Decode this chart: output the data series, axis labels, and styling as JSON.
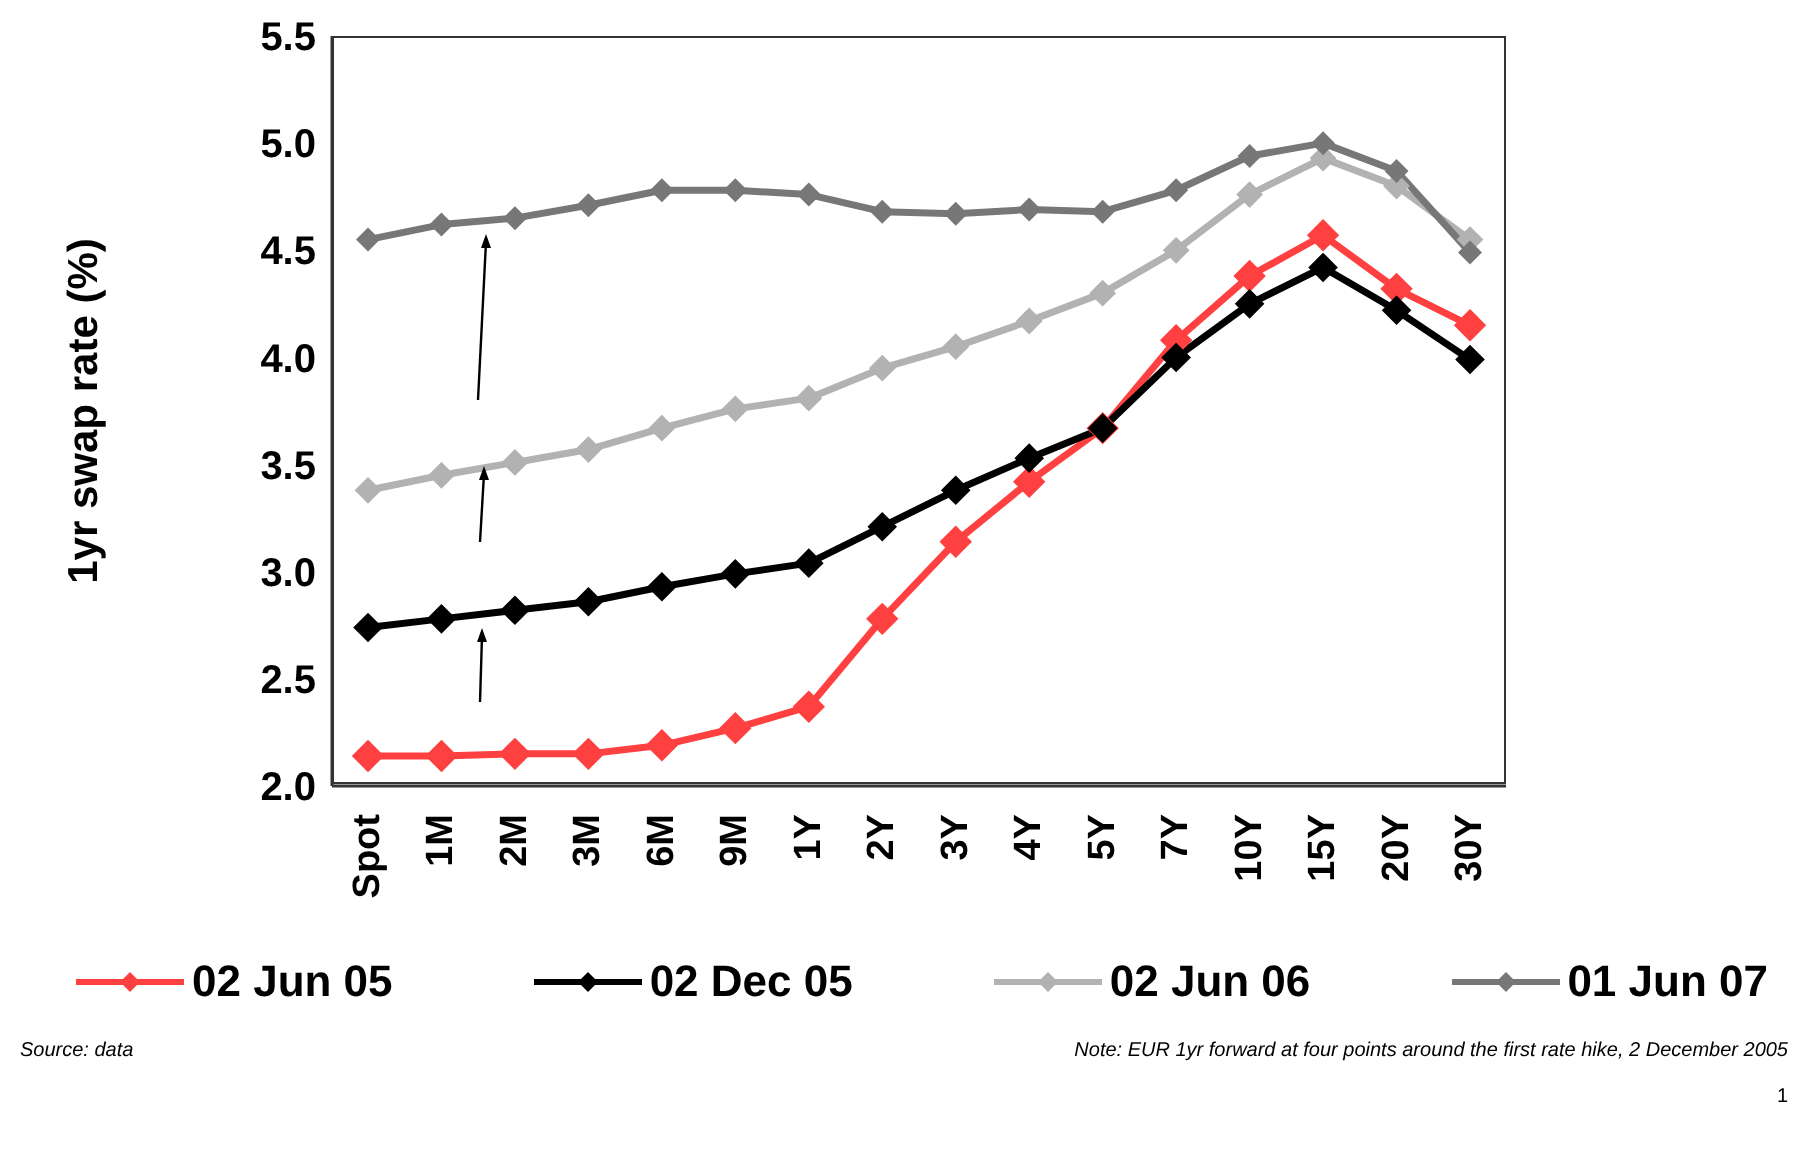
{
  "chart_data": {
    "type": "line",
    "ylabel": "1yr swap rate (%)",
    "categories": [
      "Spot",
      "1M",
      "2M",
      "3M",
      "6M",
      "9M",
      "1Y",
      "2Y",
      "3Y",
      "4Y",
      "5Y",
      "7Y",
      "10Y",
      "15Y",
      "20Y",
      "30Y"
    ],
    "series": [
      {
        "name": "02 Jun 05",
        "color": "#ff4040",
        "values": [
          2.14,
          2.14,
          2.15,
          2.15,
          2.19,
          2.27,
          2.37,
          2.78,
          3.14,
          3.42,
          3.67,
          4.08,
          4.38,
          4.57,
          4.32,
          4.15
        ]
      },
      {
        "name": "02 Dec 05",
        "color": "#000000",
        "values": [
          2.74,
          2.78,
          2.82,
          2.86,
          2.93,
          2.99,
          3.04,
          3.21,
          3.38,
          3.53,
          3.67,
          4.0,
          4.25,
          4.42,
          4.22,
          3.99
        ]
      },
      {
        "name": "02 Jun 06",
        "color": "#b2b2b2",
        "values": [
          3.38,
          3.45,
          3.51,
          3.57,
          3.67,
          3.76,
          3.81,
          3.95,
          4.05,
          4.17,
          4.3,
          4.5,
          4.76,
          4.93,
          4.8,
          4.55
        ]
      },
      {
        "name": "01 Jun 07",
        "color": "#777777",
        "values": [
          4.55,
          4.62,
          4.65,
          4.71,
          4.78,
          4.78,
          4.76,
          4.68,
          4.67,
          4.69,
          4.68,
          4.78,
          4.94,
          5.0,
          4.87,
          4.49
        ]
      }
    ],
    "ylim": [
      2.0,
      5.5
    ],
    "yticks": [
      {
        "value": 2.0,
        "label": "2.0"
      },
      {
        "value": 2.5,
        "label": "2.5"
      },
      {
        "value": 3.0,
        "label": "3.0"
      },
      {
        "value": 3.5,
        "label": "3.5"
      },
      {
        "value": 4.0,
        "label": "4.0"
      },
      {
        "value": 4.5,
        "label": "4.5"
      },
      {
        "value": 5.0,
        "label": "5.0"
      },
      {
        "value": 5.5,
        "label": "5.5"
      }
    ],
    "grid": false,
    "legend": "bottom",
    "marker": "diamond",
    "line_style": "solid",
    "annotations": [
      "Source: data",
      "Note: EUR 1yr forward at four points around the first rate hike, 2 December 2005",
      "1"
    ]
  }
}
